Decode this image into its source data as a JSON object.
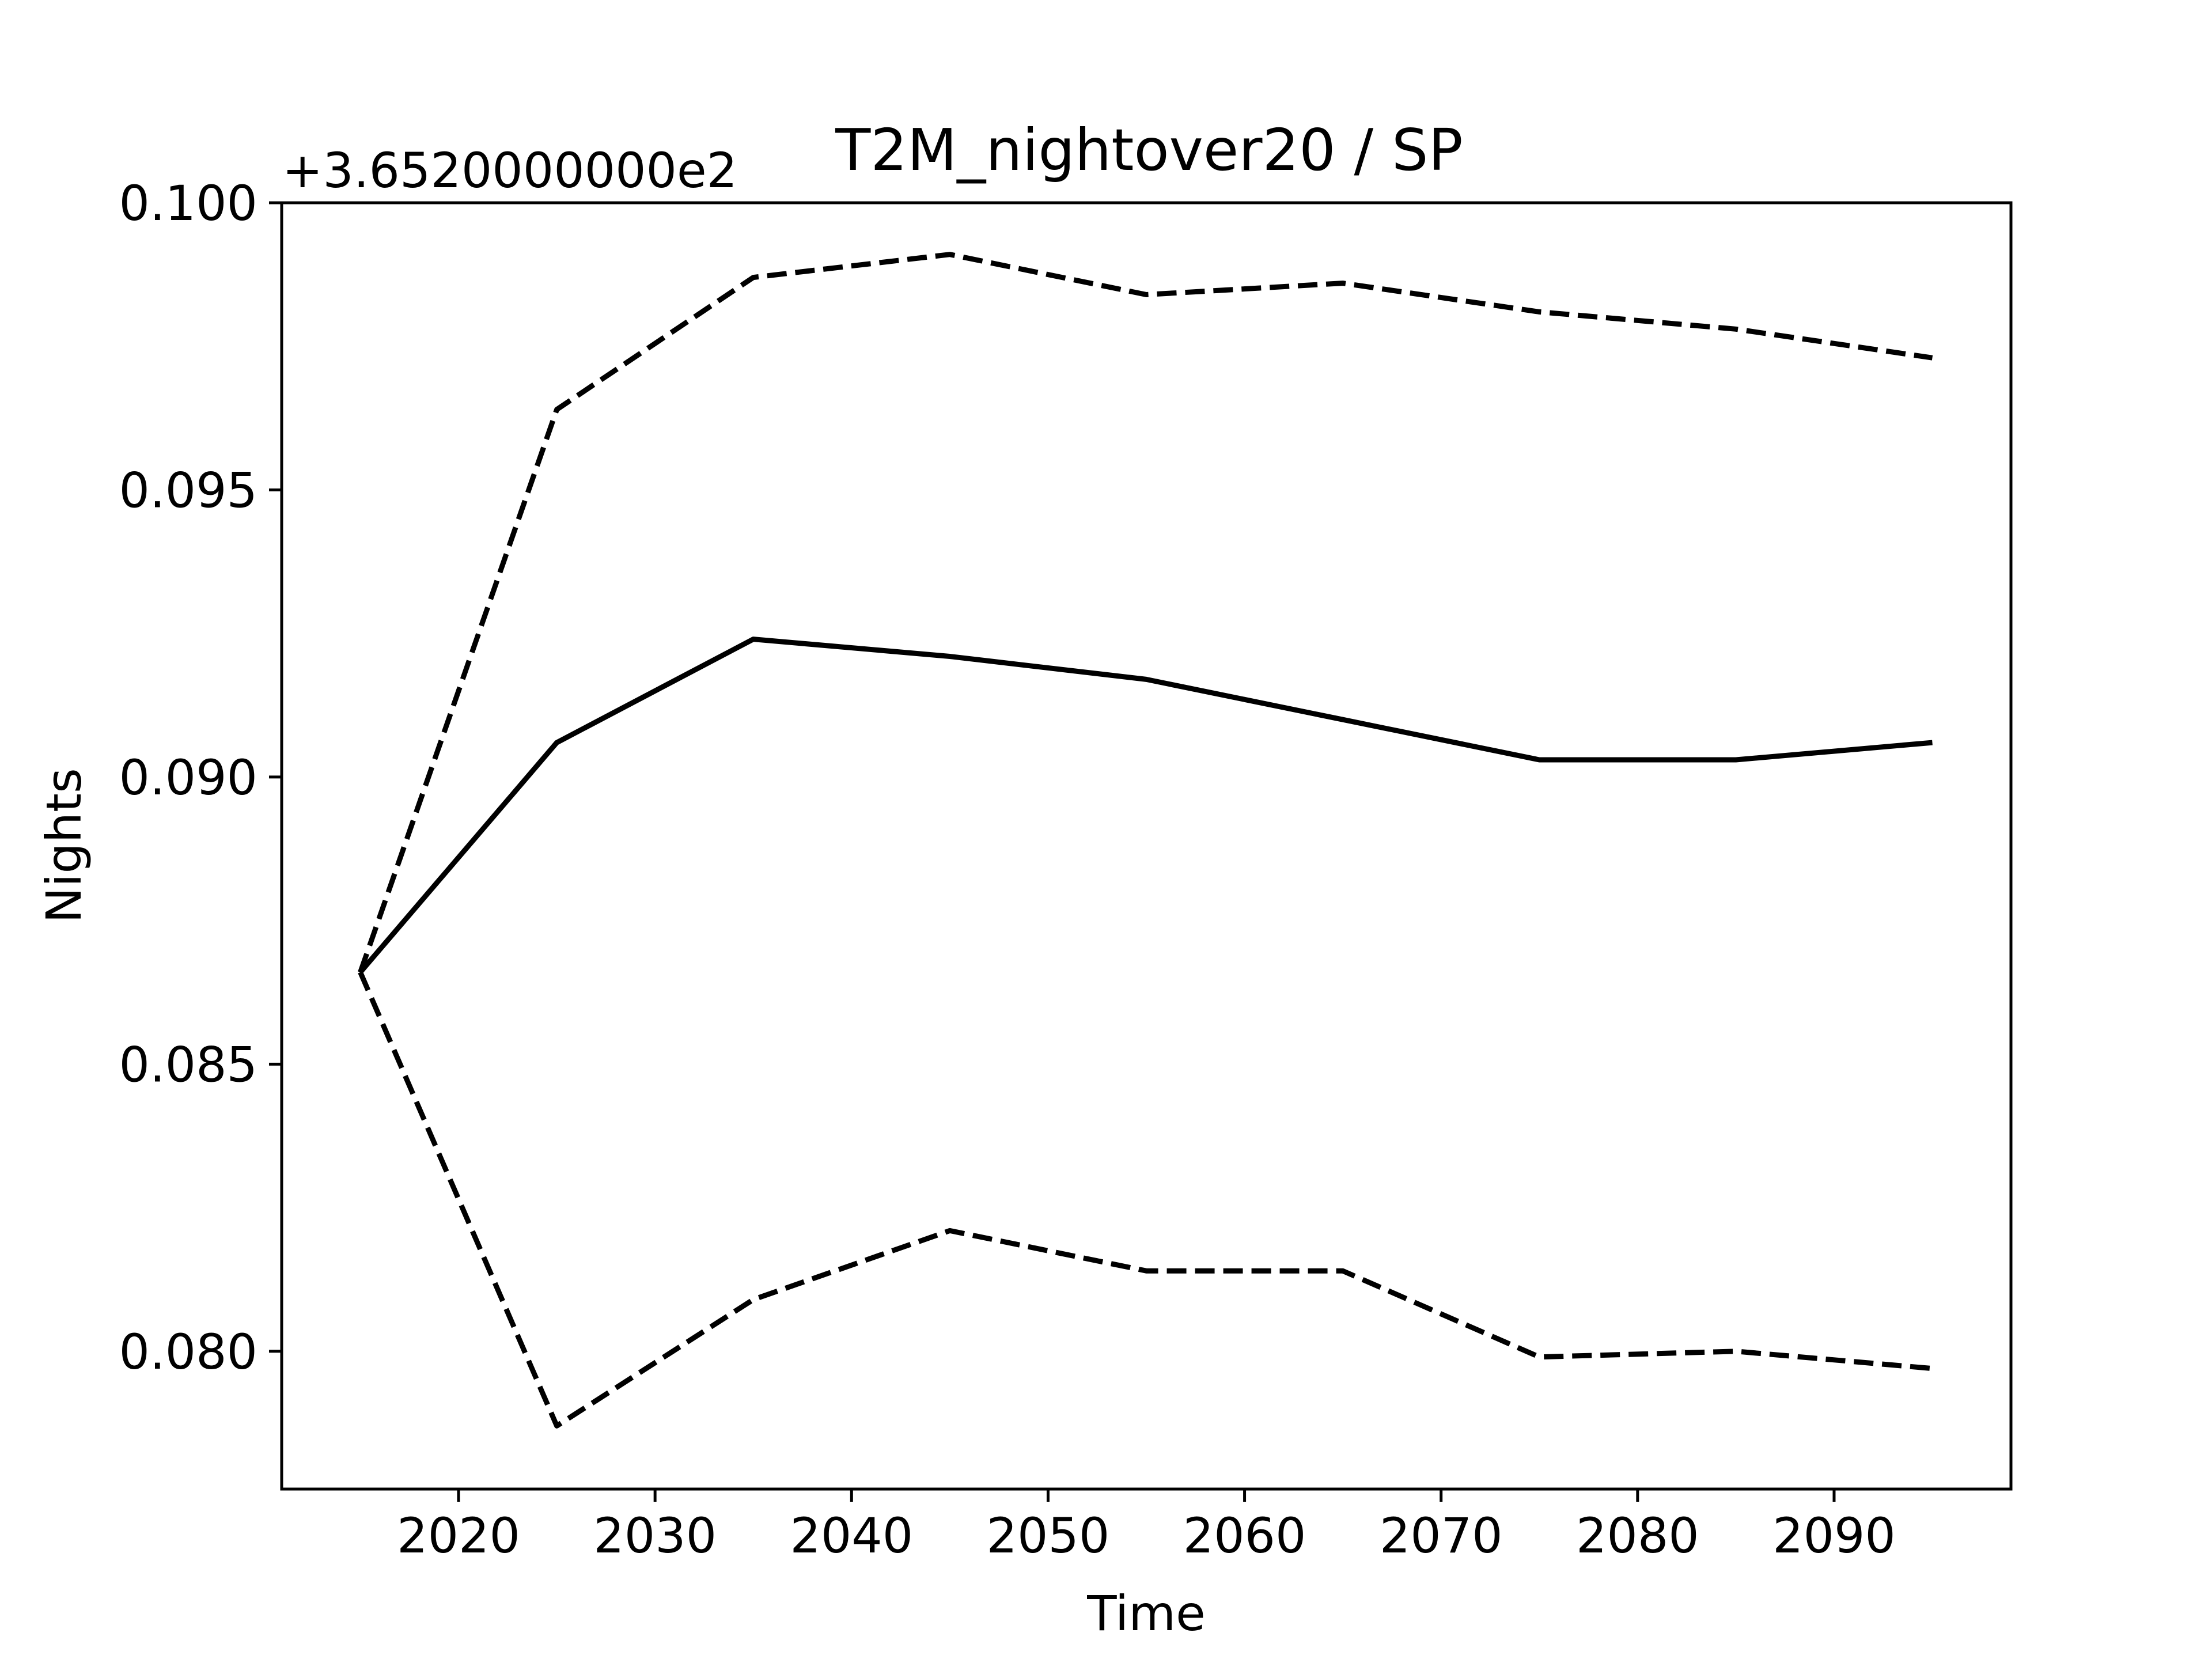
{
  "chart_data": {
    "type": "line",
    "title": "T2M_nightover20 / SP",
    "xlabel": "Time",
    "ylabel": "Nights",
    "y_offset_label": "+3.6520000000e2",
    "y_offset": 365.2,
    "xlim": [
      2011,
      2099
    ],
    "ylim": [
      0.0776,
      0.1
    ],
    "x_ticks": [
      2020,
      2030,
      2040,
      2050,
      2060,
      2070,
      2080,
      2090
    ],
    "x_tick_labels": [
      "2020",
      "2030",
      "2040",
      "2050",
      "2060",
      "2070",
      "2080",
      "2090"
    ],
    "y_ticks": [
      0.08,
      0.085,
      0.09,
      0.095,
      0.1
    ],
    "y_tick_labels": [
      "0.080",
      "0.085",
      "0.090",
      "0.095",
      "0.100"
    ],
    "grid": false,
    "x": [
      2015,
      2025,
      2035,
      2045,
      2055,
      2065,
      2075,
      2085,
      2095
    ],
    "series": [
      {
        "style": "solid",
        "color": "#000000",
        "values": [
          0.0866,
          0.0906,
          0.0924,
          0.0921,
          0.0917,
          0.091,
          0.0903,
          0.0903,
          0.0906
        ]
      },
      {
        "style": "dashed",
        "color": "#000000",
        "values": [
          0.0866,
          0.0964,
          0.0987,
          0.0991,
          0.0984,
          0.0986,
          0.0981,
          0.0978,
          0.0973
        ]
      },
      {
        "style": "dashed",
        "color": "#000000",
        "values": [
          0.0866,
          0.0787,
          0.0809,
          0.0821,
          0.0814,
          0.0814,
          0.0799,
          0.08,
          0.0797
        ]
      }
    ]
  }
}
